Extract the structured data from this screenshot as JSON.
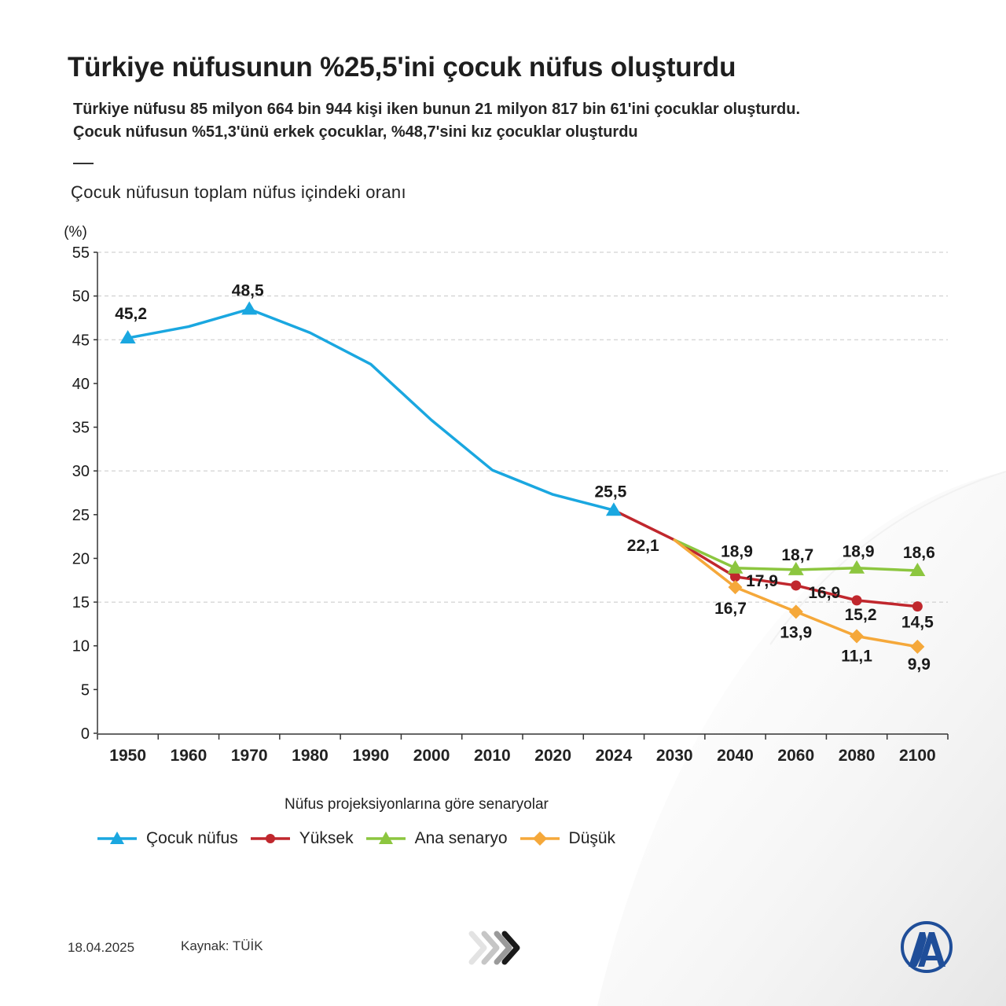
{
  "title": "Türkiye nüfusunun %25,5'ini çocuk nüfus oluşturdu",
  "subtitle": [
    "Türkiye nüfusu 85 milyon 664 bin 944 kişi iken bunun 21 milyon 817 bin 61'ini çocuklar oluşturdu.",
    "Çocuk nüfusun %51,3'ünü erkek çocuklar, %48,7'sini kız çocuklar oluşturdu"
  ],
  "chart_heading": "Çocuk nüfusun toplam nüfus içindeki oranı",
  "legend_title": "Nüfus projeksiyonlarına göre senaryolar",
  "footer": {
    "date": "18.04.2025",
    "source": "Kaynak: TÜİK"
  },
  "logo_text": "AA",
  "colors": {
    "cocuk": "#1aa7e0",
    "yuksek": "#c0272d",
    "ana": "#8cc63f",
    "dusuk": "#f5a83a",
    "grid": "#c8c8c8",
    "axis": "#333333"
  },
  "chart_data": {
    "type": "line",
    "ylabel": "(%)",
    "xlabel": "",
    "ylim": [
      0,
      55
    ],
    "yticks": [
      0,
      5,
      10,
      15,
      20,
      25,
      30,
      35,
      40,
      45,
      50,
      55
    ],
    "gridlines": [
      15,
      30,
      45,
      50,
      55
    ],
    "categories": [
      "1950",
      "1960",
      "1970",
      "1980",
      "1990",
      "2000",
      "2010",
      "2020",
      "2024",
      "2030",
      "2040",
      "2060",
      "2080",
      "2100"
    ],
    "series": [
      {
        "name": "Çocuk nüfus",
        "color_key": "cocuk",
        "marker": "triangle",
        "values": [
          45.2,
          46.5,
          48.5,
          45.8,
          42.2,
          35.8,
          30.1,
          27.3,
          25.5,
          null,
          null,
          null,
          null,
          null
        ],
        "markers_at": [
          "1950",
          "1970",
          "2024"
        ],
        "labels": [
          {
            "x": "1950",
            "text": "45,2"
          },
          {
            "x": "1970",
            "text": "48,5"
          },
          {
            "x": "2024",
            "text": "25,5"
          }
        ]
      },
      {
        "name": "Yüksek",
        "color_key": "yuksek",
        "marker": "circle",
        "values": [
          null,
          null,
          null,
          null,
          null,
          null,
          null,
          null,
          25.5,
          22.1,
          17.9,
          16.9,
          15.2,
          14.5
        ],
        "markers_at": [
          "2040",
          "2060",
          "2080",
          "2100"
        ],
        "labels": [
          {
            "x": "2040",
            "text": "17,9"
          },
          {
            "x": "2060",
            "text": "16,9"
          },
          {
            "x": "2080",
            "text": "15,2"
          },
          {
            "x": "2100",
            "text": "14,5"
          }
        ]
      },
      {
        "name": "Ana senaryo",
        "color_key": "ana",
        "marker": "triangle",
        "values": [
          null,
          null,
          null,
          null,
          null,
          null,
          null,
          null,
          null,
          22.1,
          18.9,
          18.7,
          18.9,
          18.6
        ],
        "markers_at": [
          "2040",
          "2060",
          "2080",
          "2100"
        ],
        "labels": [
          {
            "x": "2040",
            "text": "18,9"
          },
          {
            "x": "2060",
            "text": "18,7"
          },
          {
            "x": "2080",
            "text": "18,9"
          },
          {
            "x": "2100",
            "text": "18,6"
          }
        ]
      },
      {
        "name": "Düşük",
        "color_key": "dusuk",
        "marker": "diamond",
        "values": [
          null,
          null,
          null,
          null,
          null,
          null,
          null,
          null,
          null,
          22.1,
          16.7,
          13.9,
          11.1,
          9.9
        ],
        "markers_at": [
          "2040",
          "2060",
          "2080",
          "2100"
        ],
        "labels": [
          {
            "x": "2040",
            "text": "16,7"
          },
          {
            "x": "2060",
            "text": "13,9"
          },
          {
            "x": "2080",
            "text": "11,1"
          },
          {
            "x": "2100",
            "text": "9,9"
          }
        ]
      }
    ],
    "annotations": [
      {
        "x": "2030",
        "text": "22,1"
      }
    ]
  }
}
